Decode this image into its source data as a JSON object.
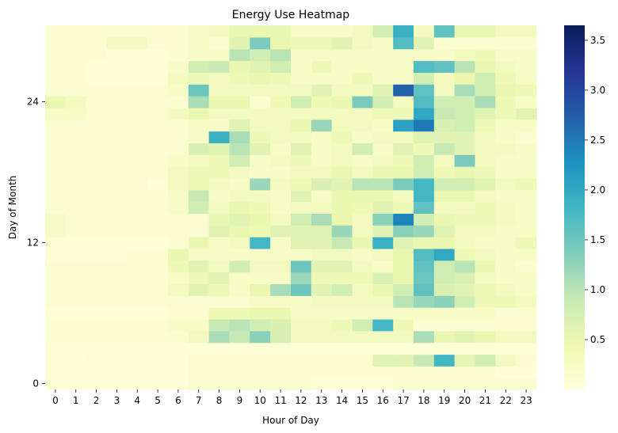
{
  "chart_data": {
    "type": "heatmap",
    "title": "Energy Use Heatmap",
    "xlabel": "Hour of Day",
    "ylabel": "Day of Month",
    "x_categories": [
      "0",
      "1",
      "2",
      "3",
      "4",
      "5",
      "6",
      "7",
      "8",
      "9",
      "10",
      "11",
      "12",
      "13",
      "14",
      "15",
      "16",
      "17",
      "18",
      "19",
      "20",
      "21",
      "22",
      "23"
    ],
    "y_ticks": [
      "0",
      "12",
      "24"
    ],
    "y_range": [
      0,
      30
    ],
    "colormap": "YlGnBu",
    "colorbar": {
      "range": [
        0,
        3.65
      ],
      "ticks": [
        "0.5",
        "1.0",
        "1.5",
        "2.0",
        "2.5",
        "3.0",
        "3.5"
      ],
      "tick_values": [
        0.5,
        1.0,
        1.5,
        2.0,
        2.5,
        3.0,
        3.5
      ]
    },
    "values": [
      [
        0.05,
        0.05,
        0.05,
        0.05,
        0.05,
        0.05,
        0.05,
        0.1,
        0.1,
        0.1,
        0.1,
        0.1,
        0.1,
        0.05,
        0.05,
        0.05,
        0.05,
        0.1,
        0.1,
        0.1,
        0.1,
        0.1,
        0.1,
        0.1
      ],
      [
        0.05,
        0.05,
        0.05,
        0.05,
        0.05,
        0.05,
        0.05,
        0.1,
        0.1,
        0.1,
        0.1,
        0.1,
        0.1,
        0.1,
        0.1,
        0.1,
        0.1,
        0.1,
        0.1,
        0.1,
        0.1,
        0.1,
        0.05,
        0.05
      ],
      [
        0.05,
        0.05,
        0.08,
        0.05,
        0.05,
        0.05,
        0.05,
        0.1,
        0.1,
        0.1,
        0.1,
        0.1,
        0.1,
        0.1,
        0.1,
        0.1,
        0.6,
        0.6,
        0.9,
        1.8,
        0.55,
        0.8,
        0.3,
        0.1
      ],
      [
        0.05,
        0.05,
        0.05,
        0.05,
        0.05,
        0.05,
        0.05,
        0.05,
        0.05,
        0.05,
        0.05,
        0.05,
        0.05,
        0.05,
        0.05,
        0.05,
        0.05,
        0.05,
        0.05,
        0.05,
        0.05,
        0.05,
        0.05,
        0.05
      ],
      [
        0.1,
        0.1,
        0.1,
        0.1,
        0.1,
        0.1,
        0.1,
        0.3,
        1.1,
        0.9,
        1.3,
        0.7,
        0.3,
        0.3,
        0.3,
        0.3,
        0.3,
        0.3,
        1.1,
        0.5,
        0.6,
        0.5,
        0.3,
        0.3
      ],
      [
        0.1,
        0.1,
        0.1,
        0.1,
        0.1,
        0.1,
        0.2,
        0.2,
        0.9,
        1.0,
        0.8,
        0.7,
        0.3,
        0.3,
        0.4,
        0.8,
        1.8,
        0.4,
        0.1,
        0.1,
        0.1,
        0.1,
        0.1,
        0.1
      ],
      [
        0.05,
        0.05,
        0.05,
        0.05,
        0.05,
        0.05,
        0.1,
        0.1,
        0.4,
        0.4,
        0.5,
        0.5,
        0.2,
        0.2,
        0.2,
        0.2,
        0.2,
        0.2,
        0.2,
        0.2,
        0.2,
        0.2,
        0.1,
        0.1
      ],
      [
        0.1,
        0.1,
        0.1,
        0.1,
        0.1,
        0.1,
        0.1,
        0.1,
        0.1,
        0.1,
        0.2,
        0.2,
        0.2,
        0.3,
        0.3,
        0.3,
        0.3,
        1.0,
        1.2,
        1.3,
        0.8,
        0.4,
        0.4,
        0.3
      ],
      [
        0.1,
        0.1,
        0.1,
        0.1,
        0.1,
        0.1,
        0.3,
        0.6,
        0.4,
        0.2,
        0.5,
        1.1,
        1.5,
        0.6,
        0.8,
        0.3,
        0.5,
        0.8,
        1.6,
        0.7,
        0.6,
        0.4,
        0.3,
        0.2
      ],
      [
        0.1,
        0.1,
        0.1,
        0.1,
        0.1,
        0.1,
        0.2,
        0.4,
        0.6,
        0.2,
        0.2,
        0.2,
        1.2,
        0.4,
        0.4,
        0.4,
        0.7,
        0.5,
        1.5,
        0.8,
        0.7,
        0.3,
        0.2,
        0.2
      ],
      [
        0.1,
        0.1,
        0.1,
        0.1,
        0.1,
        0.1,
        0.4,
        0.6,
        0.3,
        0.8,
        0.3,
        0.3,
        1.5,
        0.6,
        0.6,
        0.3,
        0.2,
        0.5,
        1.6,
        0.8,
        1.0,
        0.5,
        0.2,
        0.1
      ],
      [
        0.05,
        0.05,
        0.05,
        0.05,
        0.1,
        0.1,
        0.5,
        0.2,
        0.2,
        0.2,
        0.2,
        0.2,
        0.2,
        0.3,
        0.3,
        0.2,
        0.3,
        0.5,
        1.7,
        2.0,
        0.4,
        0.3,
        0.2,
        0.2
      ],
      [
        0.05,
        0.05,
        0.05,
        0.05,
        0.05,
        0.05,
        0.1,
        0.5,
        0.2,
        0.3,
        1.8,
        0.2,
        0.6,
        0.6,
        0.9,
        0.5,
        1.9,
        0.6,
        0.5,
        0.5,
        0.3,
        0.2,
        0.2,
        0.4
      ],
      [
        0.2,
        0.1,
        0.1,
        0.1,
        0.1,
        0.1,
        0.1,
        0.1,
        0.6,
        0.5,
        0.4,
        0.6,
        0.6,
        0.6,
        1.2,
        0.3,
        0.6,
        1.3,
        1.2,
        0.6,
        0.3,
        0.3,
        0.2,
        0.2
      ],
      [
        0.2,
        0.1,
        0.1,
        0.1,
        0.1,
        0.1,
        0.1,
        0.1,
        0.5,
        0.6,
        0.5,
        0.3,
        0.8,
        1.1,
        0.5,
        0.3,
        1.3,
        2.4,
        0.8,
        0.5,
        0.4,
        0.4,
        0.3,
        0.2
      ],
      [
        0.1,
        0.1,
        0.1,
        0.1,
        0.1,
        0.1,
        0.2,
        0.8,
        0.3,
        0.5,
        0.4,
        0.2,
        0.3,
        0.3,
        0.5,
        0.4,
        0.6,
        0.4,
        1.6,
        0.3,
        0.3,
        0.4,
        0.3,
        0.2
      ],
      [
        0.1,
        0.1,
        0.1,
        0.1,
        0.1,
        0.1,
        0.2,
        0.9,
        0.2,
        0.3,
        0.3,
        0.2,
        0.6,
        0.2,
        0.5,
        0.5,
        0.5,
        0.3,
        1.8,
        0.5,
        0.5,
        0.3,
        0.2,
        0.2
      ],
      [
        0.1,
        0.1,
        0.1,
        0.1,
        0.1,
        0.05,
        0.3,
        0.4,
        0.3,
        0.2,
        1.2,
        0.3,
        0.4,
        0.7,
        0.6,
        1.0,
        1.0,
        1.4,
        1.8,
        0.8,
        0.8,
        0.6,
        0.3,
        0.4
      ],
      [
        0.1,
        0.1,
        0.1,
        0.1,
        0.1,
        0.1,
        0.3,
        0.4,
        0.4,
        0.3,
        0.2,
        0.2,
        0.3,
        0.3,
        0.5,
        0.3,
        0.5,
        0.5,
        0.8,
        0.4,
        0.5,
        0.4,
        0.2,
        0.2
      ],
      [
        0.1,
        0.1,
        0.1,
        0.1,
        0.1,
        0.1,
        0.2,
        0.3,
        0.4,
        0.8,
        0.2,
        0.3,
        0.4,
        0.2,
        0.3,
        0.2,
        0.3,
        0.4,
        0.8,
        0.3,
        1.4,
        0.3,
        0.2,
        0.2
      ],
      [
        0.1,
        0.1,
        0.1,
        0.1,
        0.1,
        0.1,
        0.1,
        0.7,
        0.6,
        1.0,
        0.6,
        0.2,
        0.6,
        0.2,
        0.3,
        0.8,
        0.2,
        0.6,
        0.4,
        0.9,
        0.6,
        0.3,
        0.3,
        0.2
      ],
      [
        0.1,
        0.1,
        0.1,
        0.1,
        0.1,
        0.1,
        0.1,
        0.2,
        1.9,
        1.1,
        0.4,
        0.3,
        0.3,
        0.2,
        0.4,
        0.2,
        0.3,
        0.3,
        0.6,
        0.6,
        0.6,
        0.3,
        0.2,
        0.1
      ],
      [
        0.1,
        0.1,
        0.1,
        0.1,
        0.1,
        0.1,
        0.1,
        0.2,
        0.2,
        0.6,
        0.3,
        0.3,
        0.5,
        1.2,
        0.3,
        0.3,
        0.2,
        2.1,
        2.5,
        0.7,
        0.8,
        0.4,
        0.2,
        0.2
      ],
      [
        0.2,
        0.2,
        0.1,
        0.1,
        0.1,
        0.1,
        0.3,
        0.5,
        0.3,
        0.3,
        0.3,
        0.3,
        0.3,
        0.3,
        0.3,
        0.3,
        0.4,
        0.4,
        2.0,
        0.9,
        0.8,
        0.6,
        0.4,
        0.6
      ],
      [
        0.5,
        0.3,
        0.1,
        0.1,
        0.1,
        0.1,
        0.1,
        1.1,
        0.5,
        0.5,
        0.1,
        0.4,
        0.8,
        0.4,
        0.5,
        1.4,
        0.8,
        0.3,
        1.7,
        0.8,
        0.8,
        1.1,
        0.4,
        0.2
      ],
      [
        0.1,
        0.1,
        0.1,
        0.1,
        0.1,
        0.1,
        0.2,
        1.5,
        0.3,
        0.3,
        0.3,
        0.3,
        0.3,
        0.6,
        0.3,
        0.3,
        0.6,
        2.7,
        1.6,
        0.3,
        1.1,
        0.8,
        0.5,
        0.4
      ],
      [
        0.1,
        0.1,
        0.05,
        0.05,
        0.05,
        0.05,
        0.3,
        0.4,
        0.3,
        0.4,
        0.5,
        0.4,
        0.2,
        0.2,
        0.2,
        0.4,
        0.2,
        0.2,
        0.8,
        0.3,
        0.5,
        0.8,
        0.4,
        0.2
      ],
      [
        0.1,
        0.1,
        0.05,
        0.05,
        0.05,
        0.05,
        0.2,
        0.8,
        0.9,
        0.5,
        0.6,
        0.8,
        0.2,
        0.4,
        0.2,
        0.2,
        0.2,
        0.2,
        1.7,
        1.6,
        1.0,
        0.5,
        0.3,
        0.2
      ],
      [
        0.1,
        0.1,
        0.1,
        0.05,
        0.05,
        0.05,
        0.1,
        0.2,
        0.2,
        1.0,
        0.8,
        1.0,
        0.2,
        0.2,
        0.2,
        0.2,
        0.2,
        0.2,
        0.2,
        0.2,
        0.3,
        0.4,
        0.2,
        0.2
      ],
      [
        0.1,
        0.1,
        0.1,
        0.3,
        0.3,
        0.1,
        0.1,
        0.2,
        0.1,
        0.6,
        1.4,
        0.5,
        0.4,
        0.4,
        0.6,
        0.3,
        0.2,
        1.7,
        0.6,
        0.1,
        0.1,
        0.1,
        0.1,
        0.1
      ],
      [
        0.1,
        0.1,
        0.1,
        0.1,
        0.1,
        0.1,
        0.1,
        0.2,
        0.3,
        0.5,
        0.5,
        0.5,
        0.2,
        0.2,
        0.2,
        0.3,
        0.8,
        1.9,
        0.3,
        1.6,
        0.5,
        0.5,
        0.3,
        0.3
      ]
    ]
  }
}
